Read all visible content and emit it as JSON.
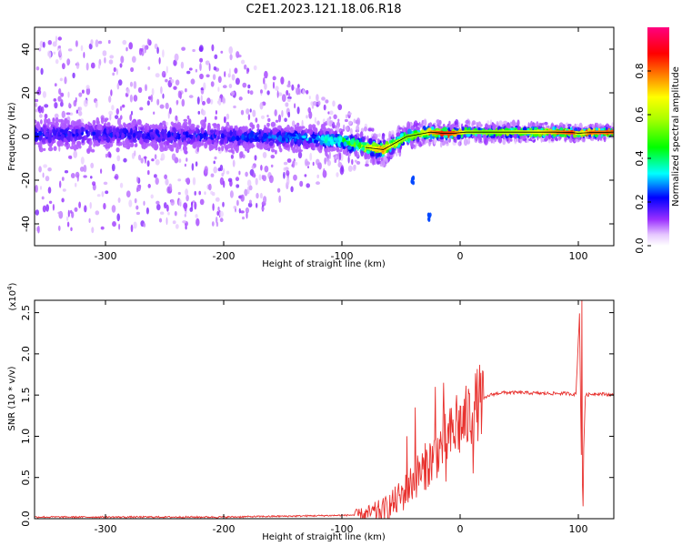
{
  "title": "C2E1.2023.121.18.06.R18",
  "chart_data": [
    {
      "type": "heatmap",
      "xlabel": "Height of straight line (km)",
      "ylabel": "Frequency (Hz)",
      "xlim": [
        -360,
        130
      ],
      "ylim": [
        -50,
        50
      ],
      "x_ticks": [
        -300,
        -200,
        -100,
        0,
        100
      ],
      "y_ticks": [
        -40,
        -20,
        0,
        20,
        40
      ],
      "colorbar": {
        "label": "Normalized spectral amplitude",
        "range": [
          0,
          1
        ],
        "ticks": [
          "0.0",
          "0.2",
          "0.4",
          "0.6",
          "0.8"
        ],
        "tick_values": [
          0.0,
          0.2,
          0.4,
          0.6,
          0.8
        ],
        "colormap": "rainbow (white-violet-blue-cyan-green-yellow-red-magenta)"
      },
      "ridge": {
        "x": [
          -350,
          -300,
          -250,
          -200,
          -150,
          -120,
          -100,
          -80,
          -65,
          -55,
          -45,
          -35,
          -25,
          -15,
          -5,
          5,
          20,
          40,
          60,
          80,
          95,
          100,
          110,
          130
        ],
        "frequency": [
          1,
          1,
          0.5,
          0,
          -0.5,
          -1,
          -2,
          -5,
          -6,
          -3,
          0,
          1,
          2,
          1.5,
          1.5,
          2,
          2,
          2,
          2,
          2,
          1.8,
          1.5,
          1.8,
          2
        ],
        "amplitude": [
          0.2,
          0.2,
          0.2,
          0.2,
          0.25,
          0.3,
          0.4,
          0.6,
          0.75,
          0.6,
          0.55,
          0.55,
          0.75,
          0.85,
          0.8,
          0.6,
          0.55,
          0.6,
          0.65,
          0.75,
          0.85,
          0.6,
          0.8,
          0.8
        ]
      },
      "band_halfwidth_hz": [
        {
          "x": -360,
          "value": 6
        },
        {
          "x": -150,
          "value": 5
        },
        {
          "x": -100,
          "value": 4
        },
        {
          "x": -50,
          "value": 3
        },
        {
          "x": 0,
          "value": 2
        },
        {
          "x": 130,
          "value": 1.5
        }
      ],
      "noise_extent_hz": [
        {
          "x": -360,
          "value": 45
        },
        {
          "x": -200,
          "value": 42
        },
        {
          "x": -100,
          "value": 15
        },
        {
          "x": -60,
          "value": 6
        },
        {
          "x": 130,
          "value": 3
        }
      ],
      "features": [
        {
          "x": -40,
          "frequency": -20,
          "note": "isolated component"
        },
        {
          "x": -26,
          "frequency": -37,
          "note": "isolated component"
        }
      ]
    },
    {
      "type": "line",
      "xlabel": "Height of straight line (km)",
      "ylabel": "SNR (10 * v/v)",
      "y_multiplier": "(x10",
      "y_multiplier_exp": "4",
      "y_multiplier_close": ")",
      "xlim": [
        -360,
        130
      ],
      "ylim": [
        0,
        2.65
      ],
      "x_ticks": [
        -300,
        -200,
        -100,
        0,
        100
      ],
      "y_ticks": [
        0.0,
        0.5,
        1.0,
        1.5,
        2.0,
        2.5
      ],
      "series": [
        {
          "color": "#e8322f",
          "x": [
            -360,
            -300,
            -200,
            -150,
            -100,
            -80,
            -65,
            -55,
            -45,
            -35,
            -25,
            -15,
            -5,
            5,
            15,
            25,
            35,
            50,
            70,
            90,
            98,
            101,
            103,
            106,
            115,
            130
          ],
          "y": [
            0.02,
            0.02,
            0.02,
            0.03,
            0.04,
            0.05,
            0.1,
            0.2,
            0.35,
            0.55,
            0.7,
            0.9,
            1.05,
            1.2,
            1.4,
            1.5,
            1.53,
            1.53,
            1.52,
            1.52,
            1.51,
            2.5,
            0.2,
            1.5,
            1.52,
            1.5
          ],
          "spikes": [
            {
              "x": -45,
              "y": 1.0
            },
            {
              "x": -38,
              "y": 1.35
            },
            {
              "x": -30,
              "y": 0.35
            },
            {
              "x": -21,
              "y": 1.6
            },
            {
              "x": -14,
              "y": 1.65
            },
            {
              "x": -12,
              "y": 0.45
            },
            {
              "x": -3,
              "y": 1.5
            },
            {
              "x": 11,
              "y": 0.55
            },
            {
              "x": 103,
              "y": 2.65
            },
            {
              "x": 104,
              "y": 0.15
            }
          ]
        }
      ]
    }
  ]
}
